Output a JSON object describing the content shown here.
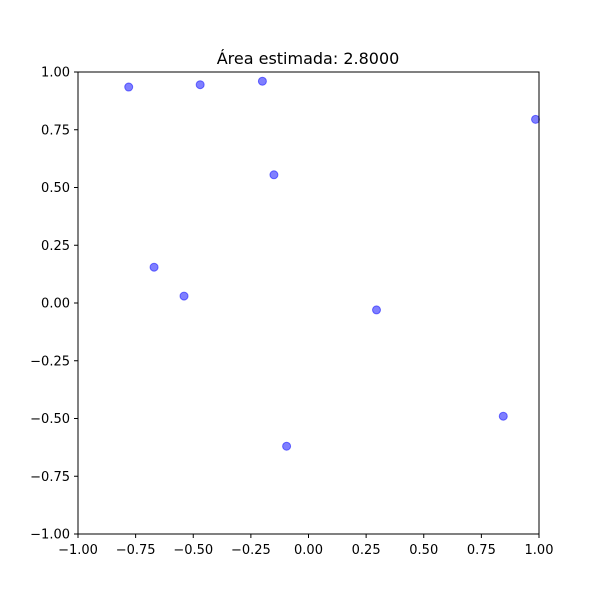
{
  "chart_data": {
    "type": "scatter",
    "title": "Área estimada: 2.8000",
    "xlabel": "",
    "ylabel": "",
    "xlim": [
      -1.0,
      1.0
    ],
    "ylim": [
      -1.0,
      1.0
    ],
    "grid": false,
    "x_ticks": [
      "−1.00",
      "−0.75",
      "−0.50",
      "−0.25",
      "0.00",
      "0.25",
      "0.50",
      "0.75",
      "1.00"
    ],
    "y_ticks": [
      "−1.00",
      "−0.75",
      "−0.50",
      "−0.25",
      "0.00",
      "0.25",
      "0.50",
      "0.75",
      "1.00"
    ],
    "marker_color": "#0000ff",
    "marker_alpha": 0.5,
    "points": [
      {
        "x": -0.78,
        "y": 0.935
      },
      {
        "x": -0.47,
        "y": 0.945
      },
      {
        "x": -0.2,
        "y": 0.96
      },
      {
        "x": 0.985,
        "y": 0.795
      },
      {
        "x": -0.15,
        "y": 0.555
      },
      {
        "x": -0.67,
        "y": 0.155
      },
      {
        "x": -0.54,
        "y": 0.03
      },
      {
        "x": 0.295,
        "y": -0.03
      },
      {
        "x": 0.845,
        "y": -0.49
      },
      {
        "x": -0.095,
        "y": -0.62
      }
    ]
  }
}
